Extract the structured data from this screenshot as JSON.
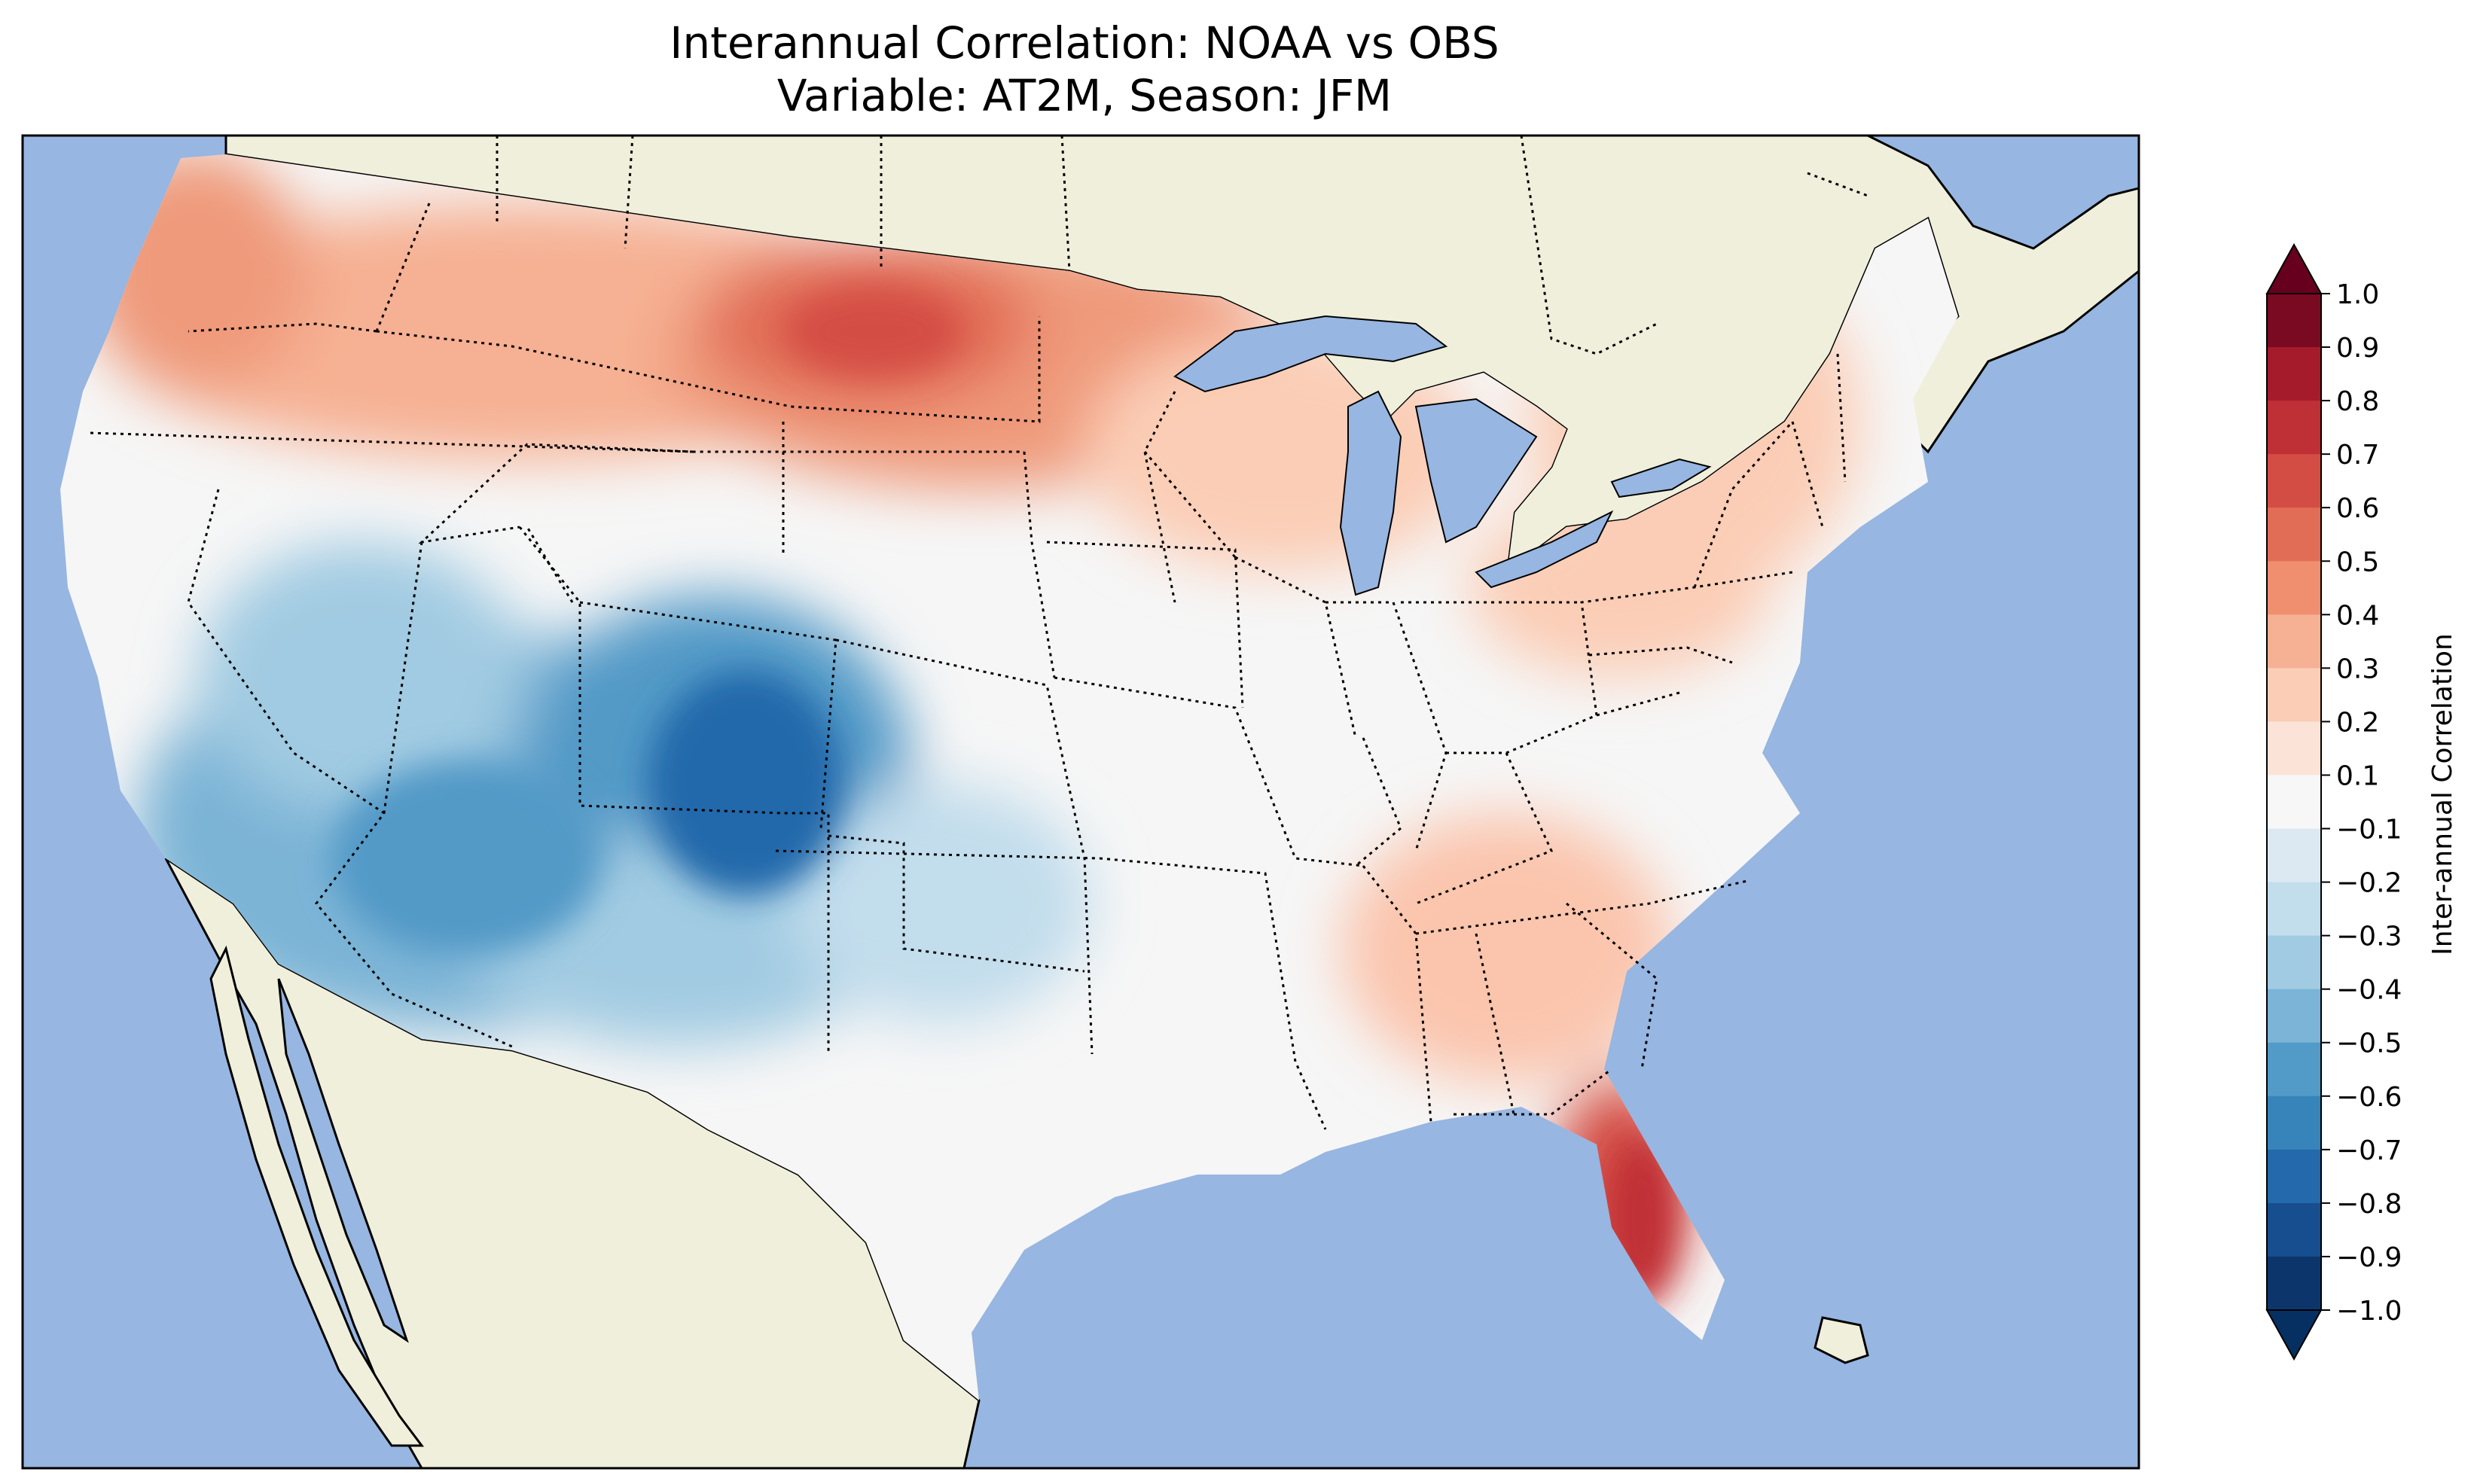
{
  "title": {
    "line1": "Interannual Correlation: NOAA vs OBS",
    "line2": "Variable: AT2M, Season: JFM"
  },
  "colors": {
    "ocean": "#97b6e1",
    "land": "#efefdb",
    "border": "#000000"
  },
  "colorbar": {
    "label": "Inter-annual Correlation",
    "ticks": [
      "1.0",
      "0.9",
      "0.8",
      "0.7",
      "0.6",
      "0.5",
      "0.4",
      "0.3",
      "0.2",
      "0.1",
      "−0.1",
      "−0.2",
      "−0.3",
      "−0.4",
      "−0.5",
      "−0.6",
      "−0.7",
      "−0.8",
      "−0.9",
      "−1.0"
    ],
    "colors": [
      "#7a0a22",
      "#a51b2c",
      "#bf2f36",
      "#d44d44",
      "#e16d57",
      "#ef8f6f",
      "#f6b093",
      "#fbcdb6",
      "#fbe4d7",
      "#f7f7f7",
      "#dde9f2",
      "#c2ddec",
      "#a1cbe2",
      "#7bb4d6",
      "#529ac7",
      "#3784bb",
      "#2469ab",
      "#164e8f",
      "#0c356c"
    ],
    "extend_top": "#67001f",
    "extend_bottom": "#053061",
    "range": [
      -1.0,
      1.0
    ]
  }
}
